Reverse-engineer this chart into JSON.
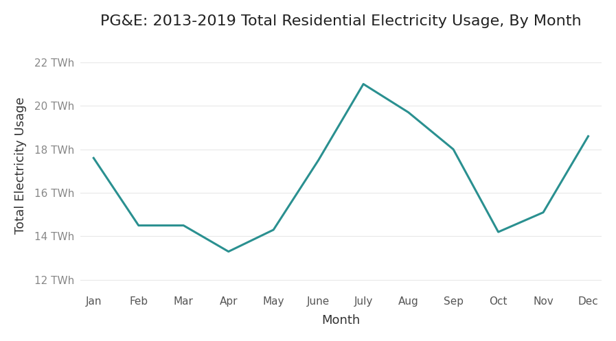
{
  "title": "PG&E: 2013-2019 Total Residential Electricity Usage, By Month",
  "xlabel": "Month",
  "ylabel": "Total Electricity Usage",
  "months": [
    "Jan",
    "Feb",
    "Mar",
    "Apr",
    "May",
    "June",
    "July",
    "Aug",
    "Sep",
    "Oct",
    "Nov",
    "Dec"
  ],
  "values": [
    17.6,
    14.5,
    14.5,
    13.3,
    14.3,
    17.5,
    21.0,
    19.7,
    18.0,
    14.2,
    15.1,
    18.6
  ],
  "line_color": "#2a9090",
  "line_width": 2.2,
  "ylim": [
    11.5,
    23.0
  ],
  "yticks": [
    12,
    14,
    16,
    18,
    20,
    22
  ],
  "ytick_labels": [
    "12 TWh",
    "14 TWh",
    "16 TWh",
    "18 TWh",
    "20 TWh",
    "22 TWh"
  ],
  "bg_color": "#ffffff",
  "grid_color": "#e8e8e8",
  "title_fontsize": 16,
  "axis_label_fontsize": 13,
  "tick_fontsize": 11
}
